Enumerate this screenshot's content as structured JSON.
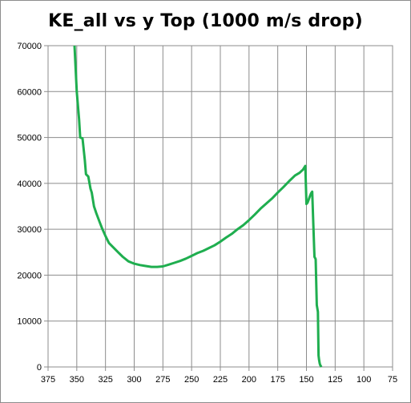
{
  "chart_data": {
    "type": "line",
    "title": "KE_all vs y Top (1000 m/s drop)",
    "xlabel": "",
    "ylabel": "",
    "x_reversed": true,
    "xlim": [
      375,
      75
    ],
    "ylim": [
      0,
      70000
    ],
    "x_ticks": [
      "375",
      "350",
      "325",
      "300",
      "275",
      "250",
      "225",
      "200",
      "175",
      "150",
      "125",
      "100",
      "75"
    ],
    "y_ticks": [
      "0",
      "10000",
      "20000",
      "30000",
      "40000",
      "50000",
      "60000",
      "70000"
    ],
    "grid": true,
    "legend": "none",
    "series": [
      {
        "color": "#1fae4f",
        "x": [
          352,
          350,
          348,
          347,
          345,
          343,
          342,
          340,
          338,
          337,
          335,
          333,
          330,
          328,
          325,
          322,
          318,
          314,
          310,
          305,
          300,
          295,
          290,
          285,
          280,
          275,
          270,
          265,
          260,
          255,
          250,
          245,
          240,
          235,
          230,
          225,
          220,
          215,
          210,
          205,
          200,
          195,
          190,
          185,
          180,
          175,
          170,
          165,
          160,
          156,
          153,
          151,
          150,
          149,
          148,
          147,
          146,
          145,
          144,
          143,
          142,
          141,
          140,
          139.5,
          139,
          138.5,
          138,
          137
        ],
        "y": [
          70000,
          60000,
          54000,
          50000,
          49800,
          45000,
          42000,
          41500,
          38800,
          38000,
          35000,
          33500,
          31500,
          30200,
          28500,
          27000,
          26000,
          25000,
          24000,
          23000,
          22500,
          22200,
          22000,
          21800,
          21800,
          21900,
          22300,
          22700,
          23100,
          23600,
          24200,
          24800,
          25300,
          25900,
          26500,
          27300,
          28200,
          29000,
          30000,
          30900,
          32000,
          33200,
          34500,
          35600,
          36700,
          38000,
          39200,
          40500,
          41700,
          42300,
          43000,
          43800,
          35500,
          35800,
          36500,
          37200,
          37800,
          38200,
          31000,
          24000,
          23500,
          13500,
          12000,
          2500,
          1500,
          800,
          400,
          0
        ]
      }
    ]
  }
}
